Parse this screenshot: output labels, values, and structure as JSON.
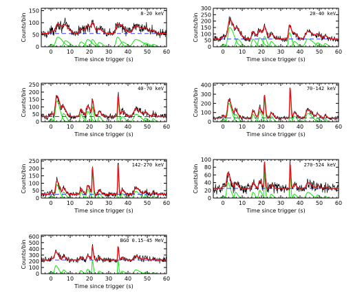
{
  "chart_data": [
    {
      "type": "line",
      "energy_band": "8-20 keV",
      "xlabel": "Time since trigger (s)",
      "ylabel": "Counts/bin",
      "xlim": [
        -5,
        60
      ],
      "ylim": [
        0,
        160
      ],
      "xticks": [
        0,
        10,
        20,
        30,
        40,
        50,
        60
      ],
      "yticks": [
        0,
        50,
        100,
        150
      ],
      "background": 55,
      "pulses": [
        [
          0,
          10,
          1.0
        ],
        [
          3.5,
          40,
          1.8
        ],
        [
          7.5,
          25,
          1.5
        ],
        [
          15.5,
          20,
          1.2
        ],
        [
          19,
          30,
          1.5
        ],
        [
          21.5,
          30,
          1.0
        ],
        [
          25,
          18,
          1.2
        ],
        [
          34.5,
          40,
          1.2
        ],
        [
          37,
          20,
          1.5
        ],
        [
          44,
          30,
          2.5
        ],
        [
          49,
          15,
          1.5
        ],
        [
          53,
          10,
          1.0
        ]
      ]
    },
    {
      "type": "line",
      "energy_band": "20-40 keV",
      "xlabel": "Time since trigger (s)",
      "ylabel": "Counts/bin",
      "xlim": [
        -5,
        60
      ],
      "ylim": [
        0,
        300
      ],
      "xticks": [
        0,
        10,
        20,
        30,
        40,
        50,
        60
      ],
      "yticks": [
        0,
        50,
        100,
        150,
        200,
        250,
        300
      ],
      "background": 60,
      "pulses": [
        [
          0,
          20,
          1.0
        ],
        [
          3.5,
          150,
          1.6
        ],
        [
          7.5,
          60,
          1.3
        ],
        [
          15.5,
          60,
          1.0
        ],
        [
          19,
          70,
          1.2
        ],
        [
          21.5,
          80,
          0.8
        ],
        [
          25,
          40,
          1.0
        ],
        [
          34.5,
          110,
          0.8
        ],
        [
          37,
          40,
          1.2
        ],
        [
          44,
          60,
          2.0
        ],
        [
          49,
          30,
          1.3
        ],
        [
          53,
          25,
          0.9
        ]
      ]
    },
    {
      "type": "line",
      "energy_band": "40-70 keV",
      "xlabel": "Time since trigger (s)",
      "ylabel": "Counts/bin",
      "xlim": [
        -5,
        60
      ],
      "ylim": [
        0,
        260
      ],
      "xticks": [
        0,
        10,
        20,
        30,
        40,
        50,
        60
      ],
      "yticks": [
        0,
        50,
        100,
        150,
        200,
        250
      ],
      "background": 35,
      "pulses": [
        [
          0,
          20,
          0.8
        ],
        [
          3,
          140,
          1.2
        ],
        [
          6.5,
          55,
          1.0
        ],
        [
          15.5,
          50,
          0.8
        ],
        [
          19,
          70,
          1.0
        ],
        [
          21.5,
          100,
          0.5
        ],
        [
          25,
          35,
          0.8
        ],
        [
          34.8,
          140,
          0.4
        ],
        [
          37,
          35,
          1.0
        ],
        [
          44,
          50,
          1.8
        ],
        [
          49,
          25,
          1.0
        ],
        [
          53,
          20,
          0.7
        ]
      ]
    },
    {
      "type": "line",
      "energy_band": "70-142 keV",
      "xlabel": "Time since trigger (s)",
      "ylabel": "Counts/bin",
      "xlim": [
        -5,
        60
      ],
      "ylim": [
        0,
        420
      ],
      "xticks": [
        0,
        10,
        20,
        30,
        40,
        50,
        60
      ],
      "yticks": [
        0,
        100,
        200,
        300,
        400
      ],
      "background": 40,
      "pulses": [
        [
          0,
          30,
          0.8
        ],
        [
          3,
          200,
          1.1
        ],
        [
          6.5,
          80,
          0.9
        ],
        [
          15.5,
          80,
          0.8
        ],
        [
          19,
          110,
          0.9
        ],
        [
          21.5,
          240,
          0.4
        ],
        [
          25,
          60,
          0.8
        ],
        [
          34.8,
          330,
          0.35
        ],
        [
          37,
          60,
          0.9
        ],
        [
          44,
          90,
          1.6
        ],
        [
          49,
          40,
          0.9
        ],
        [
          53,
          30,
          0.6
        ]
      ]
    },
    {
      "type": "line",
      "energy_band": "142-270 keV",
      "xlabel": "Time since trigger (s)",
      "ylabel": "Counts/bin",
      "xlim": [
        -5,
        60
      ],
      "ylim": [
        0,
        260
      ],
      "xticks": [
        0,
        10,
        20,
        30,
        40,
        50,
        60
      ],
      "yticks": [
        0,
        50,
        100,
        150,
        200,
        250
      ],
      "background": 25,
      "pulses": [
        [
          0,
          15,
          0.8
        ],
        [
          3,
          90,
          1.0
        ],
        [
          6.5,
          40,
          0.8
        ],
        [
          15.5,
          40,
          0.7
        ],
        [
          19,
          60,
          0.8
        ],
        [
          21.5,
          180,
          0.35
        ],
        [
          25,
          30,
          0.7
        ],
        [
          34.8,
          200,
          0.3
        ],
        [
          37,
          30,
          0.8
        ],
        [
          44,
          45,
          1.4
        ],
        [
          49,
          20,
          0.8
        ],
        [
          53,
          15,
          0.6
        ]
      ]
    },
    {
      "type": "line",
      "energy_band": "270-524 keV",
      "xlabel": "Time since trigger (s)",
      "ylabel": "Counts/bin",
      "xlim": [
        -5,
        60
      ],
      "ylim": [
        0,
        100
      ],
      "xticks": [
        0,
        10,
        20,
        30,
        40,
        50,
        60
      ],
      "yticks": [
        0,
        20,
        40,
        60,
        80,
        100
      ],
      "background": 25,
      "pulses": [
        [
          0,
          5,
          0.8
        ],
        [
          2.5,
          40,
          1.0
        ],
        [
          6.5,
          15,
          0.8
        ],
        [
          15.5,
          15,
          0.7
        ],
        [
          19,
          20,
          0.8
        ],
        [
          21.5,
          70,
          0.3
        ],
        [
          25,
          10,
          0.7
        ],
        [
          34.8,
          65,
          0.3
        ],
        [
          37,
          10,
          0.8
        ],
        [
          44,
          15,
          1.4
        ],
        [
          49,
          8,
          0.8
        ],
        [
          53,
          5,
          0.6
        ]
      ]
    },
    {
      "type": "line",
      "energy_band": "BGO 0.15-45 MeV",
      "xlabel": "Time since trigger (s)",
      "ylabel": "Counts/bin",
      "xlim": [
        -5,
        60
      ],
      "ylim": [
        0,
        620
      ],
      "xticks": [
        0,
        10,
        20,
        30,
        40,
        50,
        60
      ],
      "yticks": [
        0,
        100,
        200,
        300,
        400,
        500,
        600
      ],
      "background": 220,
      "pulses": [
        [
          0,
          30,
          0.8
        ],
        [
          2.5,
          130,
          1.0
        ],
        [
          6.5,
          60,
          0.8
        ],
        [
          15.5,
          50,
          0.7
        ],
        [
          19,
          70,
          0.8
        ],
        [
          21.5,
          220,
          0.35
        ],
        [
          25,
          40,
          0.7
        ],
        [
          34.8,
          220,
          0.3
        ],
        [
          37,
          40,
          0.8
        ],
        [
          44,
          60,
          1.4
        ],
        [
          49,
          25,
          0.8
        ],
        [
          53,
          20,
          0.6
        ]
      ]
    }
  ],
  "colors": {
    "data": "#000000",
    "model": "#e8101a",
    "pulse_components": "#22e622",
    "background_level": "#3a3aff",
    "axes": "#000000"
  }
}
